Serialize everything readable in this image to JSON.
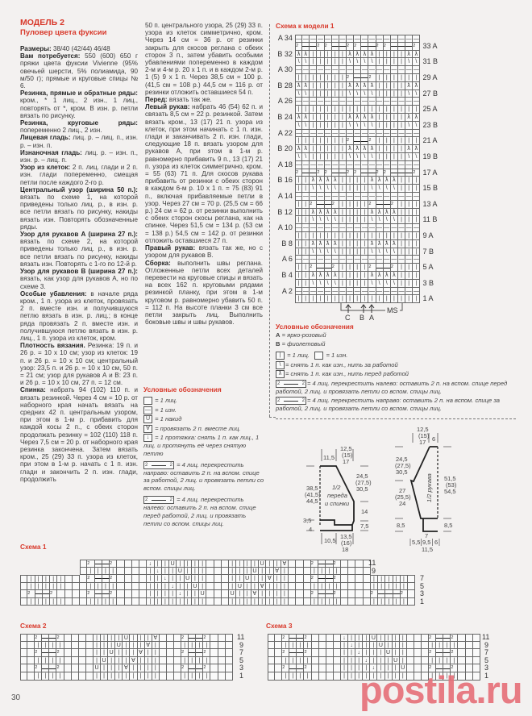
{
  "page_number": "30",
  "watermark": "postila.ru",
  "colors": {
    "accent_red": "#d8392b",
    "text": "#3b3b3b",
    "watermark": "#e66f78"
  },
  "article": {
    "model": "МОДЕЛЬ 2",
    "subtitle": "Пуловер цвета фуксии",
    "col1": [
      {
        "lead": "Размеры:",
        "text": " 38/40 (42/44) 46/48"
      },
      {
        "lead": "Вам потребуется:",
        "text": " 550 (600) 650 г пряжи цвета фуксии Vivienne (95% овечьей шерсти, 5% полиамида, 90 м/50 г); прямые и круговые спицы № 6."
      },
      {
        "lead": "Резинка, прямые и обратные ряды:",
        "text": " кром., * 1 лиц., 2 изн., 1 лиц., повторять от *, кром. В изн. р. петли вязать по рисунку."
      },
      {
        "lead": "Резинка, круговые ряды:",
        "text": " попеременно 2 лиц., 2 изн."
      },
      {
        "lead": "Лицевая гладь:",
        "text": " лиц. р. – лиц. п., изн. р. – изн. п."
      },
      {
        "lead": "Изнаночная гладь:",
        "text": " лиц. р. – изн. п., изн. р. – лиц. п."
      },
      {
        "lead": "Узор из клеток:",
        "text": " 2 п. лиц. глади и 2 п. изн. глади попеременно, смещая петли после каждого 2-го р."
      },
      {
        "lead": "Центральный узор (ширина 50 п.):",
        "text": " вязать по схеме 1, на которой приведены только лиц. р., в изн. р. все петли вязать по рисунку, накиды вязать изн. Повторять обозначенные ряды."
      },
      {
        "lead": "Узор для рукавов А (ширина 27 п.):",
        "text": " вязать по схеме 2, на которой приведены только лиц. р., в изн. р. все петли вязать по рисунку, накиды вязать изн. Повторять с 1-го по 12-й р."
      },
      {
        "lead": "Узор для рукавов В (ширина 27 п.):",
        "text": " вязать, как узор для рукавов А, но по схеме 3."
      },
      {
        "lead": "Особые убавления:",
        "text": " в начале ряда кром., 1 п. узора из клеток, провязать 2 п. вместе изн. и получившуюся петлю вязать в изн. р. лиц.; в конце ряда провязать 2 п. вместе изн. и получившуюся петлю вязать в изн. р. лиц., 1 п. узора из клеток, кром."
      },
      {
        "lead": "Плотность вязания.",
        "text": " Резинка: 19 п. и 26 р. = 10 х 10 см; узор из клеток: 19 п. и 26 р. = 10 х 10 см; центральный узор: 23,5 п. и 26 р. = 10 х 10 см, 50 п. = 21 см; узор для рукавов А и В: 23 п. и 26 р. = 10 х 10 см, 27 п. = 12 см."
      },
      {
        "lead": "Спинка:",
        "text": " набрать 94 (102) 110 п. и вязать резинкой. Через 4 см = 10 р. от наборного края начать вязать на средних 42 п. центральным узором, при этом в 1-м р. прибавить для каждой косы 2 п., с обеих сторон продолжать резинку = 102 (110) 118 п. Через 7,5 см = 20 р. от наборного края резинка закончена. Затем вязать кром., 25 (29) 33 п. узора из клеток, при этом в 1-м р. начать с 1 п. изн. глади и закончить 2 п. изн. глади, продолжить"
      }
    ],
    "col2": [
      {
        "lead": "",
        "text": "50 п. центрального узора, 25 (29) 33 п. узора из клеток симметрично, кром. Через 14 см = 36 р. от резинки закрыть для скосов реглана с обеих сторон 3 п., затем убавить особыми убавлениями попеременно в каждом 2-м и 4-м р. 20 х 1 п. и в каждом 2-м р. 1 (5) 9 х 1 п. Через 38,5 см = 100 р. (41,5 см = 108 р.) 44,5 см = 116 р. от резинки отложить оставшиеся 54 п."
      },
      {
        "lead": "Перед:",
        "text": " вязать так же."
      },
      {
        "lead": "Левый рукав:",
        "text": " набрать 46 (54) 62 п. и связать 8,5 см = 22 р. резинкой. Затем вязать кром., 13 (17) 21 п. узора из клеток, при этом начинать с 1 п. изн. глади и заканчивать 2 п. изн. глади, следующие 18 п. вязать узором для рукавов А, при этом в 1-м р. равномерно прибавить 9 п., 13 (17) 21 п. узора из клеток симметрично, кром. = 55 (63) 71 п. Для скосов рукава прибавить от резинки с обеих сторон в каждом 6-м р. 10 х 1 п. = 75 (83) 91 п., включая прибавляемые петли в узор. Через 27 см = 70 р. (25,5 см = 66 р.) 24 см = 62 р. от резинки выполнить с обеих сторон скосы реглана, как на спинке. Через 51,5 см = 134 р. (53 см = 138 р.) 54,5 см = 142 р. от резинки отложить оставшиеся 27 п."
      },
      {
        "lead": "Правый рукав:",
        "text": " вязать так же, но с узором для рукавов В."
      },
      {
        "lead": "Сборка:",
        "text": " выполнить швы реглана. Отложенные петли всех деталей перевести на круговые спицы и вязать на всех 162 п. круговыми рядами резинкой планку, при этом в 1-м круговом р. равномерно убавить 50 п. = 112 п. На высоте планки 3 см все петли закрыть лиц. Выполнить боковые швы и швы рукавов."
      }
    ]
  },
  "legend_main": {
    "title": "Условные обозначения",
    "items": [
      {
        "icon": "empty-box",
        "symbol": "",
        "text": "= 1 лиц."
      },
      {
        "icon": "dash-box",
        "symbol": "—",
        "text": "= 1 изн."
      },
      {
        "icon": "yarn-over-box",
        "symbol": "U",
        "text": "= 1 накид"
      },
      {
        "icon": "k2tog-box",
        "symbol": "∀",
        "text": "= провязать 2 п. вместе лиц."
      },
      {
        "icon": "slip-arrow-box",
        "symbol": "↓",
        "text": "= 1 протяжка: снять 1 п. как лиц., 1 лиц. и протянуть её через снятую петлю"
      },
      {
        "icon": "cable-right-box",
        "symbol": "2",
        "text": "= 4 лиц. перекрестить направо: оставить 2 п. на вспом. спице за работой, 2 лиц. и провязать петли со вспом. спицы лиц."
      },
      {
        "icon": "cable-left-box",
        "symbol": "2",
        "text": "= 4 лиц. перекрестить налево: оставить 2 п. на вспом. спице перед работой, 2 лиц. и провязать петли со вспом. спицы лиц."
      }
    ]
  },
  "model1_chart": {
    "title": "Схема к модели 1",
    "rows": [
      {
        "left": "A 34",
        "right": "",
        "cells": "-----------------"
      },
      {
        "left": "",
        "right": "33 A",
        "cells": "2cc22cc22cc22ccc2"
      },
      {
        "left": "B 32",
        "right": "",
        "cells": "LL|||||LLLL||||LL"
      },
      {
        "left": "",
        "right": "31 B",
        "cells": "SS|||||SSSS||||SS"
      },
      {
        "left": "A 30",
        "right": "",
        "cells": "-----------------"
      },
      {
        "left": "",
        "right": "29 A",
        "cells": "|||||||2cc2||||||"
      },
      {
        "left": "B 28",
        "right": "",
        "cells": "LL|||||LLLL||||LL"
      },
      {
        "left": "",
        "right": "27 B",
        "cells": "SS|||||SSSS||||SS"
      },
      {
        "left": "A 26",
        "right": "",
        "cells": "-----------------"
      },
      {
        "left": "",
        "right": "25 A",
        "cells": "|||||||||||||||||"
      },
      {
        "left": "B 24",
        "right": "",
        "cells": "LL|||||LLLL||||LL"
      },
      {
        "left": "",
        "right": "23 B",
        "cells": "SS|||||SSSS||||SS"
      },
      {
        "left": "A 22",
        "right": "",
        "cells": "-----------------"
      },
      {
        "left": "",
        "right": "21 A",
        "cells": "|||||||2cc2||||||"
      },
      {
        "left": "B 20",
        "right": "",
        "cells": "LL|||||LLLL||||LL"
      },
      {
        "left": "",
        "right": "19 B",
        "cells": "SS|||||SSSS||||SS"
      },
      {
        "left": "A 18",
        "right": "",
        "cells": "-----------------"
      },
      {
        "left": "",
        "right": "17 A",
        "cells": "2cc22cc22cc22ccc2"
      },
      {
        "left": "B 16",
        "right": "",
        "cells": "||LLLL||||LLLL|||"
      },
      {
        "left": "",
        "right": "15 B",
        "cells": "||SSSS||||SSSS|||"
      },
      {
        "left": "A 14",
        "right": "",
        "cells": "-----------------"
      },
      {
        "left": "",
        "right": "13 A",
        "cells": "||2cc2||||2cc2|||"
      },
      {
        "left": "B 12",
        "right": "",
        "cells": "||LLLL||||LLLL|||"
      },
      {
        "left": "",
        "right": "11 B",
        "cells": "||SSSS||||SSSS|||"
      },
      {
        "left": "A 10",
        "right": "",
        "cells": "-----------------"
      },
      {
        "left": "",
        "right": "9 A",
        "cells": "|||||||||||||||||"
      },
      {
        "left": "B  8",
        "right": "",
        "cells": "||LLLL||||LLLL|||"
      },
      {
        "left": "",
        "right": "7 B",
        "cells": "||SSSS||||SSSS|||"
      },
      {
        "left": "A  6",
        "right": "",
        "cells": "-----------------"
      },
      {
        "left": "",
        "right": "5 A",
        "cells": "||2cc2||||2cc2|||"
      },
      {
        "left": "B  4",
        "right": "",
        "cells": "||LLLL||||LLLL|||"
      },
      {
        "left": "",
        "right": "3 B",
        "cells": "||SSSS||||SSSS|||"
      },
      {
        "left": "A  2",
        "right": "",
        "cells": "-----------------"
      },
      {
        "left": "",
        "right": "1 A",
        "cells": "|||||||||||||||||"
      }
    ],
    "markers": {
      "c": "C",
      "b": "B",
      "a": "A",
      "ms": "MS"
    }
  },
  "legend_model1": {
    "title": "Условные обозначения",
    "color_a_key": "A",
    "color_a": "= ярко-розовый",
    "color_b_key": "B",
    "color_b": "= фиолетовый",
    "knit_symbol": "|",
    "knit": "= 1 лиц.",
    "purl": "= 1 изн.",
    "slip_back_symbol": "\\",
    "slip_back": "= снять 1 п. как изн., нить за работой",
    "slip_front_symbol": "ƛ",
    "slip_front": "= снять 1 п. как изн., нить перед работой",
    "cable_left": "= 4 лиц. перекрестить налево: оставить 2 п. на вспом. спице перед работой, 2 лиц. и провязать петли со вспом. спицы лиц.",
    "cable_right": "= 4 лиц. перекрестить направо: оставить 2 п. на вспом. спице за работой, 2 лиц. и провязать петли со вспом. спицы лиц."
  },
  "body_diagram": {
    "label": [
      "1/2",
      "переда",
      "и спинки"
    ],
    "top_left": "11,5",
    "top_mid": [
      "12,5",
      "(15)",
      "17"
    ],
    "right_upper": [
      "24,5",
      "(27,5)",
      "30,5"
    ],
    "right_mid": "14",
    "right_low": "7,5",
    "left": [
      "38,5",
      "(41,5)",
      "44,5"
    ],
    "left_small_a": "3,5",
    "left_small_b": "4",
    "bottom_left": "10,5",
    "bottom_mid": [
      "13,5",
      "(16)",
      "18"
    ]
  },
  "sleeve_diagram": {
    "label": "1/2 рукава",
    "top": [
      "12,5",
      "(15)",
      "17"
    ],
    "top_right": "6",
    "left_upper": [
      "24,5",
      "(27,5)",
      "30,5"
    ],
    "left_mid": [
      "27",
      "(25,5)",
      "24"
    ],
    "left_low": "8,5",
    "right": [
      "51,5",
      "(53)",
      "54,5"
    ],
    "right_low": "8,5",
    "bottom_top": "7",
    "bottom": [
      "5,5",
      "9,5",
      "6"
    ],
    "bottom_total": "11,5"
  },
  "schema1": {
    "title": "Схема 1",
    "labels_upper": [
      "11",
      "9"
    ],
    "labels_lower": [
      "7",
      "5",
      "3",
      "1"
    ],
    "rows": [
      "........ 2cc2    D||U||||   ||||U||V   2cc2    ......",
      "........ ||||    |D||U|||   |||U||V|   ||||    ......",
      " |||||   2cc2    ||D||U||   ||U||V||   2cc2    ||||| ",
      " |||||   ||||    |||D||U|   |U||V|||   ||||    ||||| ",
      " 2cc2    2cc2    ||||D||U   U||V||||   2cc2    2ccc2 ",
      " |||||   ||||    ||||||||   ||||||||   ||||    ||||| "
    ]
  },
  "schema2": {
    "title": "Схема 2",
    "labels": [
      "11",
      "9",
      "7",
      "5",
      "3",
      "1"
    ],
    "rows": [
      "  2cc2    ||||U|||V   2cc2   ",
      "  ||||    |||U|||V|   ||||   ",
      "  2cc2    ||U|||V||   2cc2   ",
      "  ||||    |U|||V|||   ||||   ",
      "  2cc2    U|||V||||   2cc2   ",
      "  ||||    |||||||||   ||||   "
    ]
  },
  "schema3": {
    "title": "Схема 3",
    "labels": [
      "11",
      "9",
      "7",
      "5",
      "3",
      "1"
    ],
    "rows": [
      "  2cc2    D|||U||||   2cc2   ",
      "  ||||    |D|||U|||   ||||   ",
      "  2cc2    ||D|||U||   2cc2   ",
      "  ||||    |||D|||U|   ||||   ",
      "  2cc2    ||||D|||U   2cc2   ",
      "  ||||    |||||||||   ||||   "
    ]
  }
}
